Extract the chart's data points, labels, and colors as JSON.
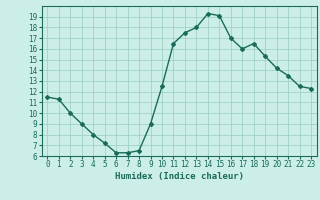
{
  "title": "",
  "xlabel": "Humidex (Indice chaleur)",
  "ylabel": "",
  "x": [
    0,
    1,
    2,
    3,
    4,
    5,
    6,
    7,
    8,
    9,
    10,
    11,
    12,
    13,
    14,
    15,
    16,
    17,
    18,
    19,
    20,
    21,
    22,
    23
  ],
  "y": [
    11.5,
    11.3,
    10.0,
    9.0,
    8.0,
    7.2,
    6.3,
    6.3,
    6.5,
    9.0,
    12.5,
    16.5,
    17.5,
    18.0,
    19.3,
    19.1,
    17.0,
    16.0,
    16.5,
    15.3,
    14.2,
    13.5,
    12.5,
    12.3
  ],
  "line_color": "#1a6b5a",
  "marker": "D",
  "marker_size": 2,
  "bg_color": "#cceee8",
  "grid_color": "#99ccbb",
  "ylim": [
    6,
    20
  ],
  "xlim": [
    -0.5,
    23.5
  ],
  "yticks": [
    6,
    7,
    8,
    9,
    10,
    11,
    12,
    13,
    14,
    15,
    16,
    17,
    18,
    19
  ],
  "xticks": [
    0,
    1,
    2,
    3,
    4,
    5,
    6,
    7,
    8,
    9,
    10,
    11,
    12,
    13,
    14,
    15,
    16,
    17,
    18,
    19,
    20,
    21,
    22,
    23
  ],
  "tick_fontsize": 5.5,
  "label_fontsize": 6.5,
  "line_width": 1.0
}
